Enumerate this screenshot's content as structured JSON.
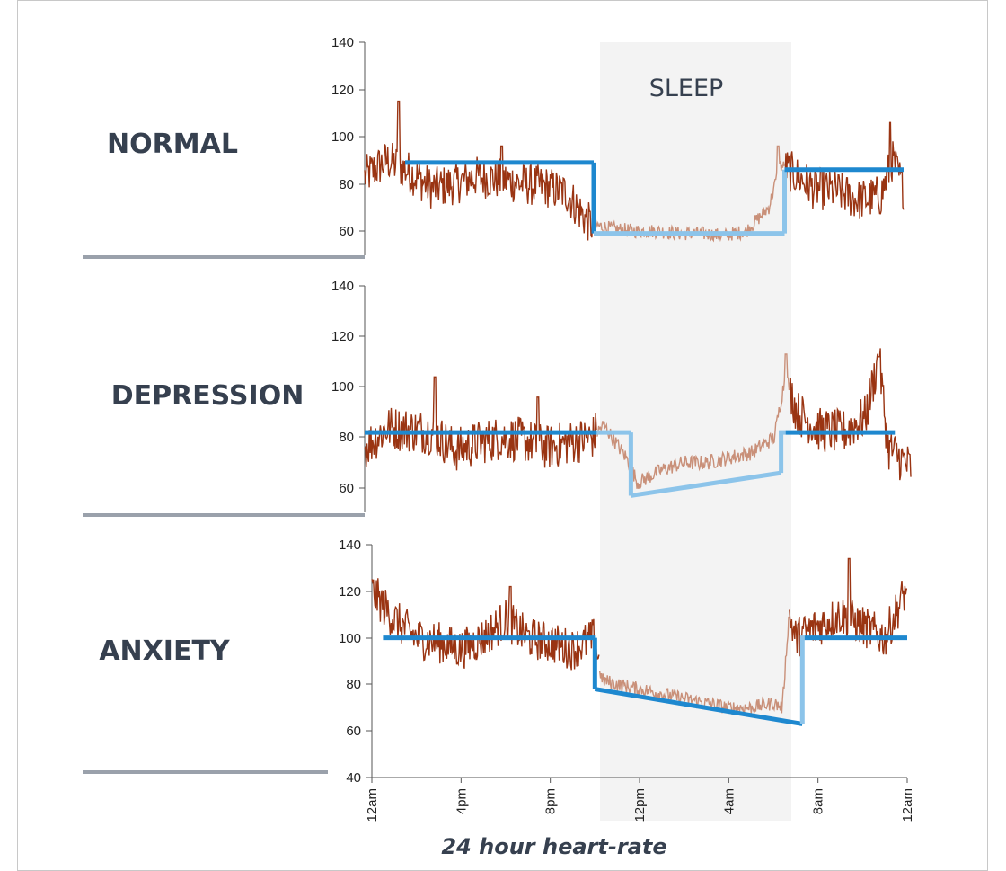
{
  "footer_label": "24 hour heart-rate",
  "sleep_label": "SLEEP",
  "colors": {
    "hr_line": "#9a3412",
    "hr_line_sleep": "#c99079",
    "mean_line": "#1e88cf",
    "mean_line_sleep": "#8cc4ea",
    "sleep_band": "#f3f3f3",
    "separator": "#9aa1ab",
    "label": "#36404f"
  },
  "chart_data": [
    {
      "type": "line",
      "title": "NORMAL",
      "ylim": [
        55,
        140
      ],
      "yticks": [
        "60",
        "80",
        "100",
        "120",
        "140"
      ],
      "x_range_hours": [
        0,
        24
      ],
      "sleep_hours": [
        10.2,
        18.7
      ],
      "series": [
        {
          "values_by_hour": [
            [
              0,
              83
            ],
            [
              1,
              90
            ],
            [
              2,
              85
            ],
            [
              3,
              78
            ],
            [
              4,
              80
            ],
            [
              5,
              83
            ],
            [
              6,
              82
            ],
            [
              7,
              80
            ],
            [
              8,
              79
            ],
            [
              9,
              76
            ],
            [
              10,
              63
            ],
            [
              11,
              61
            ],
            [
              12,
              60
            ],
            [
              13,
              60
            ],
            [
              14,
              59
            ],
            [
              15,
              59
            ],
            [
              16,
              58
            ],
            [
              17,
              60
            ],
            [
              18,
              70
            ],
            [
              18.5,
              88
            ],
            [
              19,
              85
            ],
            [
              20,
              78
            ],
            [
              21,
              77
            ],
            [
              22,
              73
            ],
            [
              23,
              75
            ],
            [
              23.5,
              90
            ],
            [
              24,
              78
            ]
          ],
          "spikes": [
            [
              1.5,
              115
            ],
            [
              6.1,
              96
            ],
            [
              18.4,
              96
            ],
            [
              23.4,
              106
            ]
          ]
        }
      ],
      "mean_levels": [
        {
          "from": 1.8,
          "to": 10.2,
          "value": 89
        },
        {
          "from": 10.2,
          "to": 18.7,
          "value": 59
        },
        {
          "from": 18.7,
          "to": 24,
          "value": 86
        }
      ]
    },
    {
      "type": "line",
      "title": "DEPRESSION",
      "ylim": [
        55,
        140
      ],
      "yticks": [
        "60",
        "80",
        "100",
        "120",
        "140"
      ],
      "x_range_hours": [
        0,
        24
      ],
      "sleep_hours": [
        10.2,
        18.7
      ],
      "series": [
        {
          "values_by_hour": [
            [
              0,
              76
            ],
            [
              1,
              84
            ],
            [
              2,
              83
            ],
            [
              3,
              82
            ],
            [
              4,
              75
            ],
            [
              5,
              78
            ],
            [
              6,
              80
            ],
            [
              7,
              79
            ],
            [
              8,
              76
            ],
            [
              9,
              78
            ],
            [
              10,
              80
            ],
            [
              10.5,
              85
            ],
            [
              11.5,
              72
            ],
            [
              12,
              62
            ],
            [
              13,
              67
            ],
            [
              14,
              70
            ],
            [
              15,
              70
            ],
            [
              16,
              72
            ],
            [
              17,
              74
            ],
            [
              18,
              80
            ],
            [
              18.5,
              105
            ],
            [
              19,
              90
            ],
            [
              20,
              83
            ],
            [
              21,
              82
            ],
            [
              22,
              88
            ],
            [
              22.6,
              112
            ],
            [
              23,
              76
            ],
            [
              24,
              68
            ]
          ],
          "spikes": [
            [
              3.1,
              104
            ],
            [
              7.6,
              96
            ],
            [
              18.5,
              113
            ],
            [
              22.6,
              112
            ]
          ]
        }
      ],
      "mean_levels": [
        {
          "from": 0,
          "to": 10.2,
          "value": 82
        },
        {
          "from": 10.2,
          "to": 11.7,
          "value": 82
        },
        {
          "from": 11.7,
          "to": 18.3,
          "value": "57 → 66"
        },
        {
          "from": 18.5,
          "to": 23.3,
          "value": 82
        }
      ]
    },
    {
      "type": "line",
      "title": "ANXIETY",
      "ylim": [
        40,
        140
      ],
      "yticks": [
        "40",
        "60",
        "80",
        "100",
        "120",
        "140"
      ],
      "xticks": [
        "12am",
        "4pm",
        "8pm",
        "12pm",
        "4am",
        "8am",
        "12am"
      ],
      "x_range_hours": [
        0,
        24
      ],
      "sleep_hours": [
        10.2,
        18.7
      ],
      "series": [
        {
          "values_by_hour": [
            [
              0,
              120
            ],
            [
              1,
              108
            ],
            [
              2,
              100
            ],
            [
              3,
              98
            ],
            [
              4,
              95
            ],
            [
              5,
              100
            ],
            [
              6,
              108
            ],
            [
              7,
              100
            ],
            [
              8,
              98
            ],
            [
              9,
              95
            ],
            [
              10,
              100
            ],
            [
              10.3,
              82
            ],
            [
              11,
              80
            ],
            [
              12,
              78
            ],
            [
              13,
              76
            ],
            [
              14,
              74
            ],
            [
              15,
              72
            ],
            [
              16,
              70
            ],
            [
              17,
              70
            ],
            [
              18,
              72
            ],
            [
              18.4,
              70
            ],
            [
              18.7,
              110
            ],
            [
              19,
              100
            ],
            [
              20,
              105
            ],
            [
              21,
              110
            ],
            [
              22,
              105
            ],
            [
              23,
              100
            ],
            [
              24,
              122
            ]
          ],
          "spikes": [
            [
              6.2,
              122
            ],
            [
              21.4,
              134
            ],
            [
              24,
              121
            ]
          ]
        }
      ],
      "mean_levels": [
        {
          "from": 0.5,
          "to": 10.0,
          "value": 100
        },
        {
          "from": 10.0,
          "to": 19.3,
          "value": "78 → 63"
        },
        {
          "from": 19.4,
          "to": 24,
          "value": 100
        }
      ]
    }
  ]
}
